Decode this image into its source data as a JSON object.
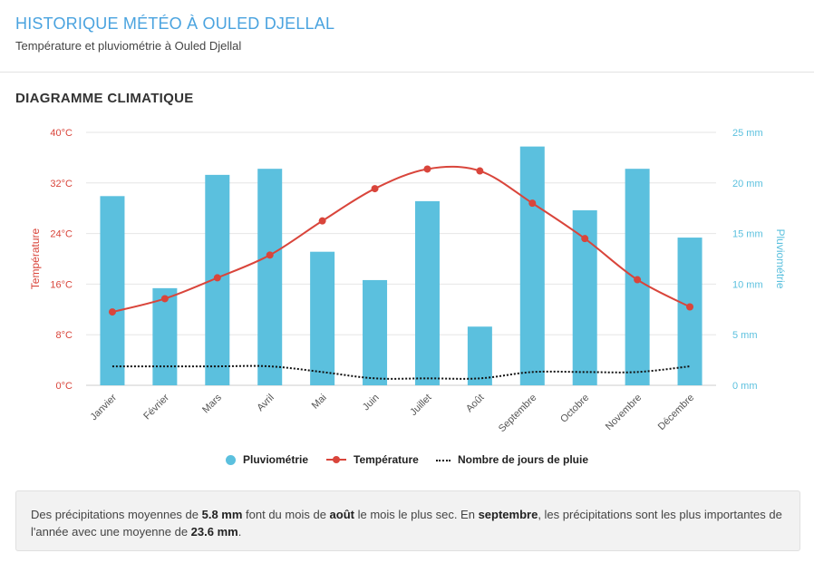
{
  "header": {
    "title": "HISTORIQUE MÉTÉO À OULED DJELLAL",
    "subtitle": "Température et pluviométrie à Ouled Djellal"
  },
  "section": {
    "title": "DIAGRAMME CLIMATIQUE"
  },
  "colors": {
    "rain": "#5bc0de",
    "temp": "#d9453b",
    "days": "#111111",
    "grid": "#e6e6e6",
    "title": "#4aa3df"
  },
  "chart_data": {
    "type": "bar",
    "categories": [
      "Janvier",
      "Février",
      "Mars",
      "Avril",
      "Mai",
      "Juin",
      "Juillet",
      "Août",
      "Septembre",
      "Octobre",
      "Novembre",
      "Décembre"
    ],
    "series": [
      {
        "name": "Pluviométrie",
        "type": "bar",
        "axis": "right",
        "values": [
          18.7,
          9.6,
          20.8,
          21.4,
          13.2,
          10.4,
          18.2,
          5.8,
          23.6,
          17.3,
          21.4,
          14.6
        ]
      },
      {
        "name": "Température",
        "type": "line",
        "axis": "left",
        "values": [
          11.6,
          13.7,
          17.0,
          20.6,
          26.0,
          31.1,
          34.2,
          33.9,
          28.8,
          23.2,
          16.7,
          12.4
        ]
      },
      {
        "name": "Nombre de jours de pluie",
        "type": "line-dotted",
        "axis": "left",
        "values": [
          3.0,
          3.0,
          3.0,
          3.0,
          2.1,
          1.1,
          1.1,
          1.1,
          2.1,
          2.1,
          2.1,
          3.0
        ]
      }
    ],
    "left_axis": {
      "label": "Température",
      "ticks": [
        "0°C",
        "8°C",
        "16°C",
        "24°C",
        "32°C",
        "40°C"
      ],
      "range": [
        0,
        40
      ]
    },
    "right_axis": {
      "label": "Pluviométrie",
      "ticks": [
        "0 mm",
        "5 mm",
        "10 mm",
        "15 mm",
        "20 mm",
        "25 mm"
      ],
      "range": [
        0,
        25
      ]
    },
    "grid": true,
    "legend_position": "bottom"
  },
  "legend": {
    "rain": "Pluviométrie",
    "temp": "Température",
    "days": "Nombre de jours de pluie"
  },
  "note": {
    "p1": "Des précipitations moyennes de ",
    "v1": "5.8 mm",
    "p2": " font du mois de ",
    "v2": "août",
    "p3": " le mois le plus sec. En ",
    "v3": "septembre",
    "p4": ", les précipitations sont les plus importantes de l'année avec une moyenne de ",
    "v4": "23.6 mm",
    "p5": "."
  }
}
